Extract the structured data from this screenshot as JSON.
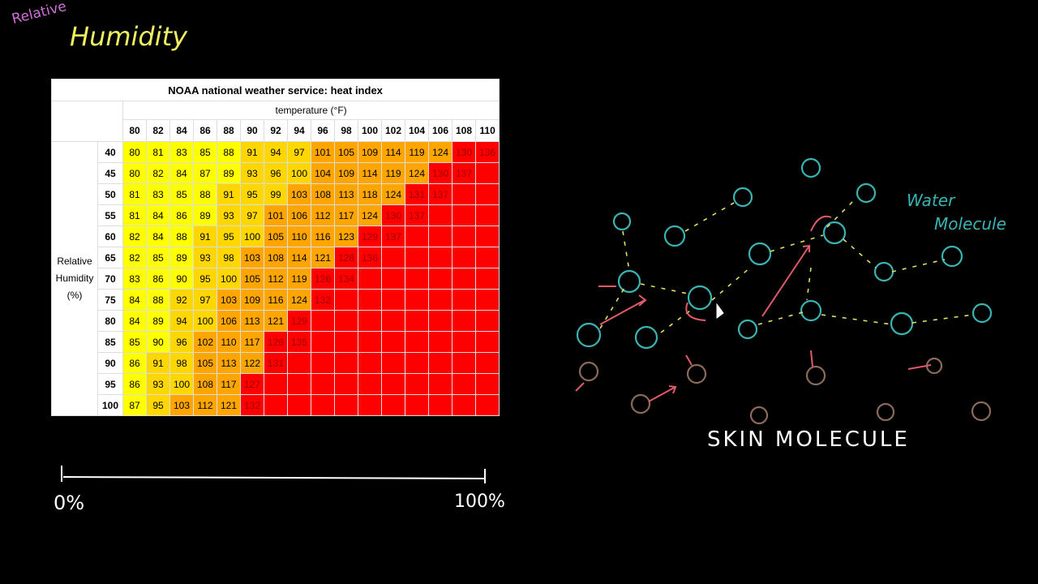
{
  "handwriting": {
    "relative": "Relative",
    "humidity": "Humidity",
    "water": "Water",
    "molecule": "Molecule",
    "skin_molecule": "SKIN MOLECULE",
    "scale_min": "0%",
    "scale_max": "100%"
  },
  "table": {
    "title": "NOAA national weather service: heat index",
    "column_header": "temperature (°F)",
    "row_header": "Relative Humidity (%)",
    "temperatures": [
      80,
      82,
      84,
      86,
      88,
      90,
      92,
      94,
      96,
      98,
      100,
      102,
      104,
      106,
      108,
      110
    ],
    "rows": [
      {
        "humidity": 40,
        "values": [
          80,
          81,
          83,
          85,
          88,
          91,
          94,
          97,
          101,
          105,
          109,
          114,
          119,
          124,
          130,
          136
        ],
        "colors": [
          "yellow",
          "yellow",
          "yellow",
          "yellow",
          "yellow",
          "gold",
          "gold",
          "gold",
          "orange",
          "orange",
          "orange",
          "orange",
          "orange",
          "orange",
          "red",
          "red"
        ]
      },
      {
        "humidity": 45,
        "values": [
          80,
          82,
          84,
          87,
          89,
          93,
          96,
          100,
          104,
          109,
          114,
          119,
          124,
          130,
          137,
          null
        ],
        "colors": [
          "yellow",
          "yellow",
          "yellow",
          "yellow",
          "yellow",
          "gold",
          "gold",
          "gold",
          "orange",
          "orange",
          "orange",
          "orange",
          "orange",
          "red",
          "red",
          "red"
        ]
      },
      {
        "humidity": 50,
        "values": [
          81,
          83,
          85,
          88,
          91,
          95,
          99,
          103,
          108,
          113,
          118,
          124,
          131,
          137,
          null,
          null
        ],
        "colors": [
          "yellow",
          "yellow",
          "yellow",
          "yellow",
          "gold",
          "gold",
          "gold",
          "orange",
          "orange",
          "orange",
          "orange",
          "orange",
          "red",
          "red",
          "red",
          "red"
        ]
      },
      {
        "humidity": 55,
        "values": [
          81,
          84,
          86,
          89,
          93,
          97,
          101,
          106,
          112,
          117,
          124,
          130,
          137,
          null,
          null,
          null
        ],
        "colors": [
          "yellow",
          "yellow",
          "yellow",
          "yellow",
          "gold",
          "gold",
          "orange",
          "orange",
          "orange",
          "orange",
          "orange",
          "red",
          "red",
          "red",
          "red",
          "red"
        ]
      },
      {
        "humidity": 60,
        "values": [
          82,
          84,
          88,
          91,
          95,
          100,
          105,
          110,
          116,
          123,
          129,
          137,
          null,
          null,
          null,
          null
        ],
        "colors": [
          "yellow",
          "yellow",
          "yellow",
          "gold",
          "gold",
          "gold",
          "orange",
          "orange",
          "orange",
          "orange",
          "red",
          "red",
          "red",
          "red",
          "red",
          "red"
        ]
      },
      {
        "humidity": 65,
        "values": [
          82,
          85,
          89,
          93,
          98,
          103,
          108,
          114,
          121,
          128,
          136,
          null,
          null,
          null,
          null,
          null
        ],
        "colors": [
          "yellow",
          "yellow",
          "yellow",
          "gold",
          "gold",
          "orange",
          "orange",
          "orange",
          "orange",
          "red",
          "red",
          "red",
          "red",
          "red",
          "red",
          "red"
        ]
      },
      {
        "humidity": 70,
        "values": [
          83,
          86,
          90,
          95,
          100,
          105,
          112,
          119,
          126,
          134,
          null,
          null,
          null,
          null,
          null,
          null
        ],
        "colors": [
          "yellow",
          "yellow",
          "yellow",
          "gold",
          "gold",
          "orange",
          "orange",
          "orange",
          "red",
          "red",
          "red",
          "red",
          "red",
          "red",
          "red",
          "red"
        ]
      },
      {
        "humidity": 75,
        "values": [
          84,
          88,
          92,
          97,
          103,
          109,
          116,
          124,
          132,
          null,
          null,
          null,
          null,
          null,
          null,
          null
        ],
        "colors": [
          "yellow",
          "yellow",
          "gold",
          "gold",
          "orange",
          "orange",
          "orange",
          "orange",
          "red",
          "red",
          "red",
          "red",
          "red",
          "red",
          "red",
          "red"
        ]
      },
      {
        "humidity": 80,
        "values": [
          84,
          89,
          94,
          100,
          106,
          113,
          121,
          129,
          null,
          null,
          null,
          null,
          null,
          null,
          null,
          null
        ],
        "colors": [
          "yellow",
          "yellow",
          "gold",
          "gold",
          "orange",
          "orange",
          "orange",
          "red",
          "red",
          "red",
          "red",
          "red",
          "red",
          "red",
          "red",
          "red"
        ]
      },
      {
        "humidity": 85,
        "values": [
          85,
          90,
          96,
          102,
          110,
          117,
          126,
          135,
          null,
          null,
          null,
          null,
          null,
          null,
          null,
          null
        ],
        "colors": [
          "yellow",
          "yellow",
          "gold",
          "orange",
          "orange",
          "orange",
          "red",
          "red",
          "red",
          "red",
          "red",
          "red",
          "red",
          "red",
          "red",
          "red"
        ]
      },
      {
        "humidity": 90,
        "values": [
          86,
          91,
          98,
          105,
          113,
          122,
          131,
          null,
          null,
          null,
          null,
          null,
          null,
          null,
          null,
          null
        ],
        "colors": [
          "yellow",
          "gold",
          "gold",
          "orange",
          "orange",
          "orange",
          "red",
          "red",
          "red",
          "red",
          "red",
          "red",
          "red",
          "red",
          "red",
          "red"
        ]
      },
      {
        "humidity": 95,
        "values": [
          86,
          93,
          100,
          108,
          117,
          127,
          null,
          null,
          null,
          null,
          null,
          null,
          null,
          null,
          null,
          null
        ],
        "colors": [
          "yellow",
          "gold",
          "gold",
          "orange",
          "orange",
          "red",
          "red",
          "red",
          "red",
          "red",
          "red",
          "red",
          "red",
          "red",
          "red",
          "red"
        ]
      },
      {
        "humidity": 100,
        "values": [
          87,
          95,
          103,
          112,
          121,
          132,
          null,
          null,
          null,
          null,
          null,
          null,
          null,
          null,
          null,
          null
        ],
        "colors": [
          "yellow",
          "gold",
          "orange",
          "orange",
          "orange",
          "red",
          "red",
          "red",
          "red",
          "red",
          "red",
          "red",
          "red",
          "red",
          "red",
          "red"
        ]
      }
    ]
  }
}
